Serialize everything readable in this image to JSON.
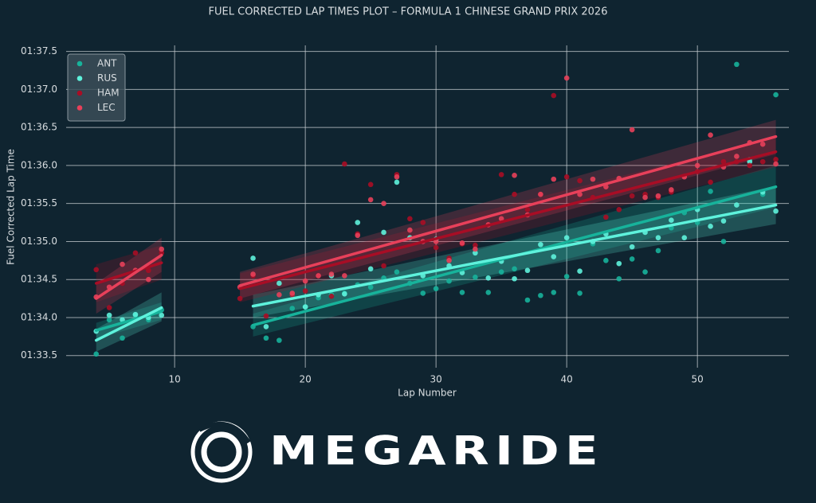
{
  "chart_data": {
    "type": "scatter",
    "title": "FUEL CORRECTED LAP TIMES PLOT – FORMULA 1 CHINESE GRAND PRIX 2026",
    "x_label": "Lap Number",
    "y_label": "Fuel Corrected Lap Time",
    "xlim": [
      1.7,
      57
    ],
    "ylim": [
      93.34,
      97.58
    ],
    "xticks": [
      10,
      20,
      30,
      40,
      50
    ],
    "yticks": [
      {
        "value": 93.5,
        "label": "01:33.5"
      },
      {
        "value": 94,
        "label": "01:34.0"
      },
      {
        "value": 94.5,
        "label": "01:34.5"
      },
      {
        "value": 95,
        "label": "01:35.0"
      },
      {
        "value": 95.5,
        "label": "01:35.5"
      },
      {
        "value": 96,
        "label": "01:36.0"
      },
      {
        "value": 96.5,
        "label": "01:36.5"
      },
      {
        "value": 97,
        "label": "01:37.0"
      },
      {
        "value": 97.5,
        "label": "01:37.5"
      }
    ],
    "grid": true,
    "legend": "upper left",
    "series": [
      {
        "name": "ANT",
        "color": "#17b39b",
        "x": [
          4,
          5,
          6,
          7,
          8,
          9,
          16,
          17,
          18,
          19,
          20,
          21,
          22,
          23,
          24,
          25,
          26,
          27,
          28,
          29,
          30,
          31,
          32,
          33,
          34,
          35,
          36,
          37,
          38,
          39,
          40,
          41,
          42,
          43,
          44,
          45,
          46,
          47,
          48,
          49,
          50,
          51,
          52,
          53,
          54,
          55,
          56
        ],
        "values": [
          93.52,
          93.97,
          93.73,
          94.03,
          93.97,
          94.1,
          93.88,
          93.73,
          93.7,
          94.12,
          94.14,
          94.26,
          94.3,
          94.32,
          94.43,
          94.4,
          94.52,
          94.6,
          94.45,
          94.32,
          94.38,
          94.48,
          94.33,
          94.53,
          94.33,
          94.6,
          94.64,
          94.23,
          94.29,
          94.33,
          94.54,
          94.32,
          94.97,
          94.75,
          94.51,
          94.77,
          94.6,
          94.88,
          95.18,
          95.38,
          95.25,
          95.66,
          95.0,
          97.33,
          96.08,
          95.62,
          96.93
        ],
        "trends": [
          {
            "x": [
              4,
              9
            ],
            "values": [
              93.83,
              94.08
            ],
            "lower": [
              93.72,
              93.97
            ],
            "upper": [
              93.93,
              94.2
            ]
          },
          {
            "x": [
              16,
              56
            ],
            "values": [
              93.9,
              95.72
            ],
            "lower": [
              93.75,
              95.45
            ],
            "upper": [
              94.05,
              96.0
            ]
          }
        ]
      },
      {
        "name": "RUS",
        "color": "#5ef2dc",
        "x": [
          4,
          5,
          6,
          7,
          8,
          9,
          16,
          17,
          18,
          19,
          20,
          21,
          22,
          23,
          24,
          25,
          26,
          27,
          28,
          29,
          30,
          31,
          32,
          33,
          34,
          35,
          36,
          37,
          38,
          39,
          40,
          41,
          42,
          43,
          44,
          45,
          46,
          47,
          48,
          49,
          50,
          51,
          52,
          53,
          54,
          55,
          56
        ],
        "values": [
          93.82,
          94.03,
          93.97,
          94.04,
          94.0,
          94.03,
          94.78,
          93.88,
          94.45,
          94.3,
          94.14,
          94.3,
          94.55,
          94.31,
          95.25,
          94.64,
          95.12,
          95.78,
          95.05,
          94.55,
          95.03,
          94.68,
          94.59,
          94.85,
          94.52,
          94.74,
          94.51,
          94.62,
          94.96,
          94.8,
          95.05,
          94.61,
          95.0,
          95.1,
          94.71,
          94.93,
          95.12,
          95.05,
          95.28,
          95.05,
          95.42,
          95.2,
          95.27,
          95.48,
          96.05,
          95.65,
          95.4
        ],
        "trends": [
          {
            "x": [
              4,
              9
            ],
            "values": [
              93.7,
              94.13
            ],
            "lower": [
              93.55,
              93.95
            ],
            "upper": [
              93.85,
              94.33
            ]
          },
          {
            "x": [
              16,
              56
            ],
            "values": [
              94.15,
              95.48
            ],
            "lower": [
              94.0,
              95.23
            ],
            "upper": [
              94.3,
              95.73
            ]
          }
        ]
      },
      {
        "name": "HAM",
        "color": "#a80d25",
        "x": [
          4,
          5,
          6,
          7,
          8,
          9,
          15,
          16,
          17,
          19,
          20,
          21,
          22,
          23,
          24,
          25,
          26,
          27,
          28,
          29,
          30,
          31,
          32,
          33,
          34,
          35,
          36,
          37,
          38,
          39,
          40,
          41,
          42,
          43,
          44,
          45,
          46,
          47,
          48,
          49,
          50,
          51,
          52,
          53,
          54,
          55,
          56
        ],
        "values": [
          94.63,
          94.13,
          94.45,
          94.85,
          94.62,
          94.85,
          94.25,
          94.55,
          94.02,
          94.3,
          94.35,
          94.55,
          94.28,
          96.02,
          95.1,
          95.75,
          94.68,
          95.88,
          95.3,
          95.25,
          94.92,
          94.78,
          94.97,
          94.95,
          95.22,
          95.88,
          95.62,
          95.42,
          95.62,
          96.92,
          95.85,
          95.8,
          95.58,
          95.32,
          95.42,
          95.6,
          95.62,
          95.58,
          95.65,
          95.86,
          95.92,
          95.78,
          96.05,
          96.05,
          96.0,
          96.05,
          96.08
        ],
        "trends": [
          {
            "x": [
              4,
              9
            ],
            "values": [
              94.45,
              94.72
            ],
            "lower": [
              94.2,
              94.5
            ],
            "upper": [
              94.7,
              94.95
            ]
          },
          {
            "x": [
              15,
              56
            ],
            "values": [
              94.38,
              96.18
            ],
            "lower": [
              94.2,
              95.98
            ],
            "upper": [
              94.58,
              96.38
            ]
          }
        ]
      },
      {
        "name": "LEC",
        "color": "#e8405a",
        "x": [
          4,
          5,
          6,
          7,
          8,
          9,
          15,
          16,
          18,
          19,
          20,
          21,
          22,
          23,
          24,
          25,
          26,
          27,
          28,
          29,
          30,
          31,
          32,
          33,
          34,
          35,
          36,
          37,
          38,
          39,
          40,
          41,
          42,
          43,
          44,
          45,
          46,
          47,
          48,
          49,
          50,
          51,
          52,
          53,
          54,
          55,
          56
        ],
        "values": [
          94.27,
          94.4,
          94.7,
          94.62,
          94.5,
          94.9,
          94.4,
          94.57,
          94.3,
          94.32,
          94.48,
          94.55,
          94.57,
          94.55,
          95.08,
          95.55,
          95.5,
          95.85,
          95.15,
          95.0,
          95.0,
          94.75,
          94.98,
          94.9,
          95.22,
          95.3,
          95.87,
          95.35,
          95.62,
          95.82,
          97.15,
          95.62,
          95.82,
          95.72,
          95.83,
          96.47,
          95.58,
          95.6,
          95.68,
          95.85,
          96.0,
          96.4,
          95.98,
          96.12,
          96.3,
          96.28,
          96.02
        ],
        "trends": [
          {
            "x": [
              4,
              9
            ],
            "values": [
              94.25,
              94.82
            ],
            "lower": [
              94.05,
              94.6
            ],
            "upper": [
              94.45,
              95.05
            ]
          },
          {
            "x": [
              15,
              56
            ],
            "values": [
              94.42,
              96.38
            ],
            "lower": [
              94.25,
              96.15
            ],
            "upper": [
              94.6,
              96.6
            ]
          }
        ]
      }
    ]
  },
  "brand": "MEGARIDE"
}
